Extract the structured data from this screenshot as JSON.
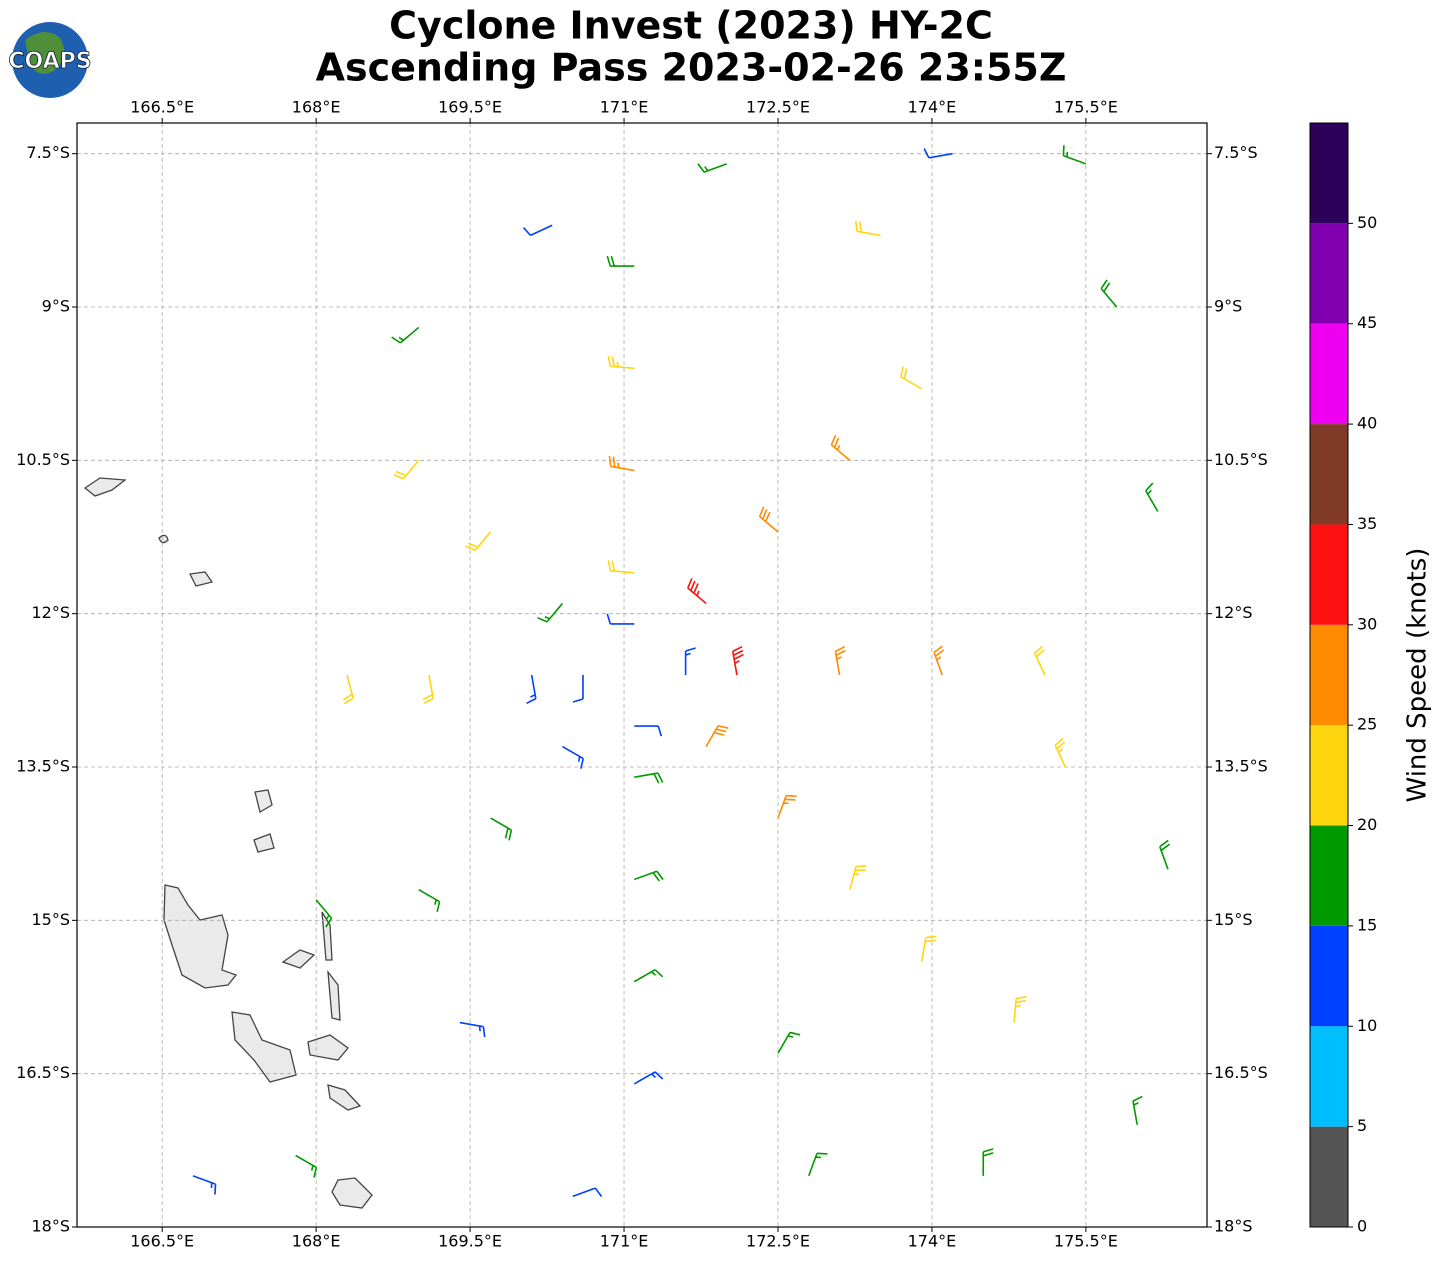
{
  "chart_data": {
    "type": "barb",
    "title": [
      "Cyclone Invest (2023) HY-2C",
      "Ascending Pass 2023-02-26 23:55Z"
    ],
    "logo": "COAPS",
    "xlim": [
      165.67,
      176.68
    ],
    "ylim": [
      -18,
      -7.2
    ],
    "xticks": [
      {
        "value": 166.5,
        "label": "166.5°E"
      },
      {
        "value": 168,
        "label": "168°E"
      },
      {
        "value": 169.5,
        "label": "169.5°E"
      },
      {
        "value": 171,
        "label": "171°E"
      },
      {
        "value": 172.5,
        "label": "172.5°E"
      },
      {
        "value": 174,
        "label": "174°E"
      },
      {
        "value": 175.5,
        "label": "175.5°E"
      }
    ],
    "yticks": [
      {
        "value": -7.5,
        "label": "7.5°S"
      },
      {
        "value": -9,
        "label": "9°S"
      },
      {
        "value": -10.5,
        "label": "10.5°S"
      },
      {
        "value": -12,
        "label": "12°S"
      },
      {
        "value": -13.5,
        "label": "13.5°S"
      },
      {
        "value": -15,
        "label": "15°S"
      },
      {
        "value": -16.5,
        "label": "16.5°S"
      },
      {
        "value": -18,
        "label": "18°S"
      }
    ],
    "grid": true,
    "colorbar": {
      "label": "Wind Speed (knots)",
      "bins": [
        0,
        5,
        10,
        15,
        20,
        25,
        30,
        35,
        40,
        45,
        50,
        55
      ],
      "colors": [
        "#555555",
        "#00bfff",
        "#0040ff",
        "#009900",
        "#ffd60f",
        "#ff8c00",
        "#ff1010",
        "#7f3b26",
        "#f000f0",
        "#8000b0",
        "#2d005a"
      ],
      "ticks": [
        0,
        5,
        10,
        15,
        20,
        25,
        30,
        35,
        40,
        45,
        50
      ]
    },
    "barbs": [
      [
        171.1,
        -12.1,
        12,
        270
      ],
      [
        171.6,
        -12.6,
        14,
        0
      ],
      [
        171.1,
        -13.1,
        12,
        90
      ],
      [
        170.6,
        -12.6,
        11,
        180
      ],
      [
        171.1,
        -11.6,
        22,
        275
      ],
      [
        171.8,
        -11.9,
        33,
        310
      ],
      [
        172.1,
        -12.6,
        33,
        350
      ],
      [
        171.8,
        -13.3,
        28,
        30
      ],
      [
        171.1,
        -13.6,
        18,
        80
      ],
      [
        170.4,
        -13.3,
        14,
        120
      ],
      [
        170.1,
        -12.6,
        13,
        170
      ],
      [
        170.4,
        -11.9,
        17,
        220
      ],
      [
        171.1,
        -10.6,
        27,
        280
      ],
      [
        172.5,
        -11.2,
        28,
        310
      ],
      [
        173.1,
        -12.6,
        27,
        350
      ],
      [
        172.5,
        -14.0,
        26,
        20
      ],
      [
        171.1,
        -14.6,
        18,
        70
      ],
      [
        169.7,
        -14.0,
        18,
        120
      ],
      [
        169.1,
        -12.6,
        22,
        170
      ],
      [
        169.7,
        -11.2,
        22,
        220
      ],
      [
        171.1,
        -9.6,
        23,
        275
      ],
      [
        173.2,
        -10.5,
        26,
        310
      ],
      [
        174.1,
        -12.6,
        25,
        340
      ],
      [
        173.2,
        -14.7,
        23,
        15
      ],
      [
        171.1,
        -15.6,
        16,
        60
      ],
      [
        169.0,
        -14.7,
        17,
        120
      ],
      [
        168.3,
        -12.6,
        22,
        165
      ],
      [
        169.0,
        -10.5,
        21,
        220
      ],
      [
        171.1,
        -8.6,
        18,
        270
      ],
      [
        173.9,
        -9.8,
        22,
        300
      ],
      [
        175.1,
        -12.6,
        21,
        335
      ],
      [
        173.9,
        -15.4,
        22,
        10
      ],
      [
        171.1,
        -16.6,
        13,
        60
      ],
      [
        169.4,
        -16.0,
        13,
        100
      ],
      [
        168.0,
        -14.8,
        17,
        140
      ],
      [
        169.0,
        -9.2,
        17,
        230
      ],
      [
        175.8,
        -9.0,
        18,
        320
      ],
      [
        176.2,
        -11.0,
        17,
        330
      ],
      [
        176.3,
        -14.5,
        18,
        340
      ],
      [
        176.0,
        -17.0,
        17,
        350
      ],
      [
        174.5,
        -17.5,
        18,
        0
      ],
      [
        172.8,
        -17.5,
        17,
        20
      ],
      [
        170.5,
        -17.7,
        12,
        70
      ],
      [
        166.8,
        -17.5,
        14,
        110
      ],
      [
        167.8,
        -17.3,
        16,
        120
      ],
      [
        172.0,
        -7.6,
        17,
        250
      ],
      [
        174.2,
        -7.5,
        10,
        260
      ],
      [
        175.5,
        -7.6,
        17,
        290
      ],
      [
        173.5,
        -8.3,
        22,
        280
      ],
      [
        170.3,
        -8.2,
        11,
        245
      ],
      [
        174.8,
        -16.0,
        23,
        5
      ],
      [
        175.3,
        -13.5,
        23,
        335
      ],
      [
        172.5,
        -16.3,
        16,
        30
      ]
    ]
  }
}
